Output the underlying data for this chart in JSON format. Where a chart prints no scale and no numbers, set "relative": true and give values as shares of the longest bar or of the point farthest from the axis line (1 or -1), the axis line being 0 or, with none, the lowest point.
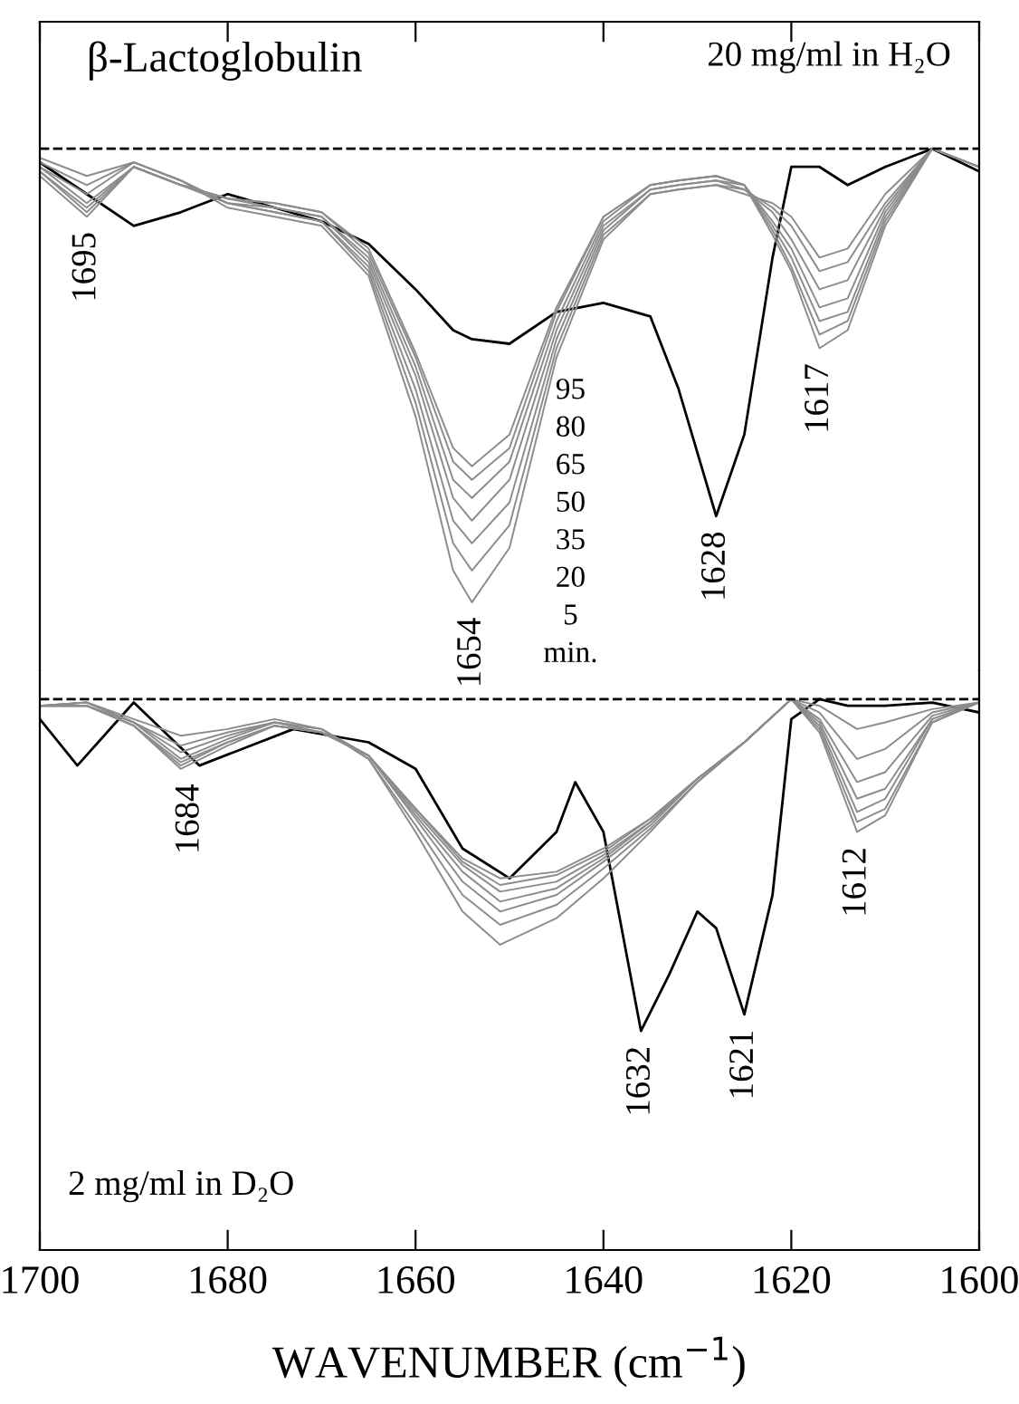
{
  "chart_data": [
    {
      "type": "line",
      "title": "β-Lactoglobulin",
      "relative": true,
      "tick_labels": false,
      "xlim": [
        1700,
        1600
      ],
      "xticks": [
        1700,
        1680,
        1660,
        1640,
        1620,
        1600
      ],
      "x": [
        1700,
        1695,
        1690,
        1685,
        1680,
        1675,
        1670,
        1665,
        1660,
        1656,
        1654,
        1650,
        1645,
        1640,
        1635,
        1632,
        1628,
        1625,
        1622,
        1620,
        1617,
        1614,
        1610,
        1605,
        1600
      ],
      "series": [
        {
          "color": "#000000",
          "values": [
            -0.03,
            -0.1,
            -0.17,
            -0.14,
            -0.1,
            -0.13,
            -0.16,
            -0.21,
            -0.31,
            -0.4,
            -0.42,
            -0.43,
            -0.36,
            -0.34,
            -0.37,
            -0.53,
            -0.81,
            -0.63,
            -0.24,
            -0.04,
            -0.04,
            -0.08,
            -0.04,
            0,
            -0.05
          ]
        },
        {
          "color": "#8c8c8c",
          "values": [
            -0.02,
            -0.06,
            -0.03,
            -0.07,
            -0.13,
            -0.15,
            -0.17,
            -0.28,
            -0.59,
            -0.93,
            -1.0,
            -0.88,
            -0.46,
            -0.2,
            -0.1,
            -0.09,
            -0.08,
            -0.1,
            -0.12,
            -0.15,
            -0.24,
            -0.22,
            -0.1,
            0,
            -0.04
          ]
        },
        {
          "color": "#8c8c8c",
          "values": [
            -0.03,
            -0.08,
            -0.03,
            -0.07,
            -0.12,
            -0.14,
            -0.16,
            -0.27,
            -0.56,
            -0.87,
            -0.93,
            -0.83,
            -0.44,
            -0.19,
            -0.1,
            -0.09,
            -0.08,
            -0.09,
            -0.13,
            -0.17,
            -0.27,
            -0.25,
            -0.12,
            0,
            -0.04
          ]
        },
        {
          "color": "#8c8c8c",
          "values": [
            -0.04,
            -0.1,
            -0.03,
            -0.07,
            -0.12,
            -0.14,
            -0.16,
            -0.26,
            -0.53,
            -0.82,
            -0.87,
            -0.78,
            -0.42,
            -0.18,
            -0.09,
            -0.08,
            -0.07,
            -0.09,
            -0.14,
            -0.2,
            -0.31,
            -0.29,
            -0.13,
            0,
            -0.04
          ]
        },
        {
          "color": "#8c8c8c",
          "values": [
            -0.04,
            -0.12,
            -0.04,
            -0.08,
            -0.12,
            -0.13,
            -0.15,
            -0.25,
            -0.5,
            -0.77,
            -0.82,
            -0.73,
            -0.4,
            -0.17,
            -0.09,
            -0.08,
            -0.07,
            -0.08,
            -0.16,
            -0.22,
            -0.35,
            -0.33,
            -0.14,
            0,
            -0.04
          ]
        },
        {
          "color": "#8c8c8c",
          "values": [
            -0.05,
            -0.13,
            -0.04,
            -0.08,
            -0.11,
            -0.13,
            -0.15,
            -0.24,
            -0.48,
            -0.73,
            -0.77,
            -0.69,
            -0.38,
            -0.16,
            -0.08,
            -0.07,
            -0.06,
            -0.08,
            -0.17,
            -0.24,
            -0.38,
            -0.36,
            -0.15,
            0,
            -0.04
          ]
        },
        {
          "color": "#8c8c8c",
          "values": [
            -0.05,
            -0.14,
            -0.04,
            -0.08,
            -0.11,
            -0.12,
            -0.14,
            -0.23,
            -0.46,
            -0.69,
            -0.73,
            -0.66,
            -0.36,
            -0.15,
            -0.08,
            -0.07,
            -0.06,
            -0.08,
            -0.18,
            -0.26,
            -0.41,
            -0.38,
            -0.16,
            0,
            -0.04
          ]
        },
        {
          "color": "#8c8c8c",
          "values": [
            -0.06,
            -0.15,
            -0.04,
            -0.08,
            -0.11,
            -0.12,
            -0.14,
            -0.22,
            -0.45,
            -0.66,
            -0.7,
            -0.63,
            -0.35,
            -0.15,
            -0.08,
            -0.07,
            -0.06,
            -0.08,
            -0.19,
            -0.27,
            -0.44,
            -0.4,
            -0.17,
            0,
            -0.04
          ]
        }
      ],
      "ref_lines": [
        {
          "axis": "y",
          "value": 0,
          "line_style": "dashed",
          "color": "#000000"
        }
      ],
      "annotations": [
        "20 mg/ml in H₂O",
        {
          "text": "1695",
          "x": 1695,
          "y": -0.15
        },
        {
          "text": "1654",
          "x": 1654,
          "y": -1.0
        },
        {
          "text": "1628",
          "x": 1628,
          "y": -0.81
        },
        {
          "text": "1617",
          "x": 1617,
          "y": -0.44
        },
        "95",
        "80",
        "65",
        "50",
        "35",
        "20",
        "5",
        "min."
      ]
    },
    {
      "type": "line",
      "relative": true,
      "xlabel": "WAVENUMBER (cm$^{−1}$)",
      "xlim": [
        1700,
        1600
      ],
      "xticks": [
        1700,
        1680,
        1660,
        1640,
        1620,
        1600
      ],
      "x": [
        1700,
        1695,
        1690,
        1685,
        1680,
        1675,
        1670,
        1665,
        1660,
        1655,
        1651,
        1645,
        1640,
        1635,
        1630,
        1625,
        1620,
        1617,
        1613,
        1610,
        1605,
        1600
      ],
      "series": [
        {
          "color": "#000000",
          "x": [
            1700,
            1696,
            1690,
            1683,
            1673,
            1665,
            1660,
            1655,
            1650,
            1645,
            1643,
            1640,
            1636,
            1633,
            1630,
            1628,
            1625,
            1622,
            1620,
            1617,
            1614,
            1610,
            1605,
            1600
          ],
          "values": [
            -0.06,
            -0.2,
            -0.01,
            -0.2,
            -0.09,
            -0.13,
            -0.21,
            -0.45,
            -0.54,
            -0.4,
            -0.25,
            -0.4,
            -1.0,
            -0.83,
            -0.64,
            -0.69,
            -0.95,
            -0.59,
            -0.06,
            0,
            -0.02,
            -0.02,
            -0.01,
            -0.04
          ]
        },
        {
          "color": "#8c8c8c",
          "values": [
            -0.02,
            -0.01,
            -0.06,
            -0.11,
            -0.09,
            -0.06,
            -0.09,
            -0.18,
            -0.4,
            -0.64,
            -0.74,
            -0.66,
            -0.54,
            -0.4,
            -0.25,
            -0.13,
            0,
            -0.02,
            -0.09,
            -0.07,
            -0.03,
            -0.01
          ]
        },
        {
          "color": "#8c8c8c",
          "values": [
            -0.02,
            -0.01,
            -0.07,
            -0.14,
            -0.1,
            -0.07,
            -0.09,
            -0.18,
            -0.38,
            -0.59,
            -0.68,
            -0.62,
            -0.51,
            -0.39,
            -0.25,
            -0.13,
            0,
            -0.04,
            -0.18,
            -0.15,
            -0.04,
            -0.01
          ]
        },
        {
          "color": "#8c8c8c",
          "values": [
            -0.02,
            -0.01,
            -0.07,
            -0.16,
            -0.11,
            -0.07,
            -0.09,
            -0.17,
            -0.36,
            -0.55,
            -0.64,
            -0.59,
            -0.49,
            -0.38,
            -0.24,
            -0.13,
            0,
            -0.06,
            -0.25,
            -0.22,
            -0.05,
            -0.01
          ]
        },
        {
          "color": "#8c8c8c",
          "values": [
            -0.02,
            -0.02,
            -0.07,
            -0.18,
            -0.12,
            -0.07,
            -0.1,
            -0.17,
            -0.35,
            -0.52,
            -0.61,
            -0.57,
            -0.48,
            -0.37,
            -0.24,
            -0.13,
            0,
            -0.07,
            -0.3,
            -0.27,
            -0.06,
            -0.01
          ]
        },
        {
          "color": "#8c8c8c",
          "values": [
            -0.02,
            -0.02,
            -0.08,
            -0.19,
            -0.13,
            -0.08,
            -0.1,
            -0.17,
            -0.34,
            -0.5,
            -0.58,
            -0.55,
            -0.47,
            -0.37,
            -0.24,
            -0.13,
            0,
            -0.08,
            -0.34,
            -0.3,
            -0.06,
            -0.01
          ]
        },
        {
          "color": "#8c8c8c",
          "values": [
            -0.02,
            -0.02,
            -0.08,
            -0.2,
            -0.13,
            -0.08,
            -0.1,
            -0.17,
            -0.33,
            -0.49,
            -0.56,
            -0.53,
            -0.46,
            -0.36,
            -0.24,
            -0.13,
            0,
            -0.09,
            -0.37,
            -0.33,
            -0.07,
            -0.01
          ]
        },
        {
          "color": "#8c8c8c",
          "values": [
            -0.02,
            -0.02,
            -0.08,
            -0.21,
            -0.14,
            -0.08,
            -0.1,
            -0.17,
            -0.33,
            -0.48,
            -0.54,
            -0.52,
            -0.45,
            -0.36,
            -0.24,
            -0.13,
            0,
            -0.1,
            -0.4,
            -0.35,
            -0.07,
            -0.01
          ]
        }
      ],
      "ref_lines": [
        {
          "axis": "y",
          "value": 0,
          "line_style": "dashed",
          "color": "#000000"
        }
      ],
      "annotations": [
        "2 mg/ml in D₂O",
        {
          "text": "1684",
          "x": 1684,
          "y": -0.21
        },
        {
          "text": "1632",
          "x": 1636,
          "y": -1.0
        },
        {
          "text": "1621",
          "x": 1625,
          "y": -0.95
        },
        {
          "text": "1612",
          "x": 1613,
          "y": -0.4
        }
      ]
    }
  ]
}
